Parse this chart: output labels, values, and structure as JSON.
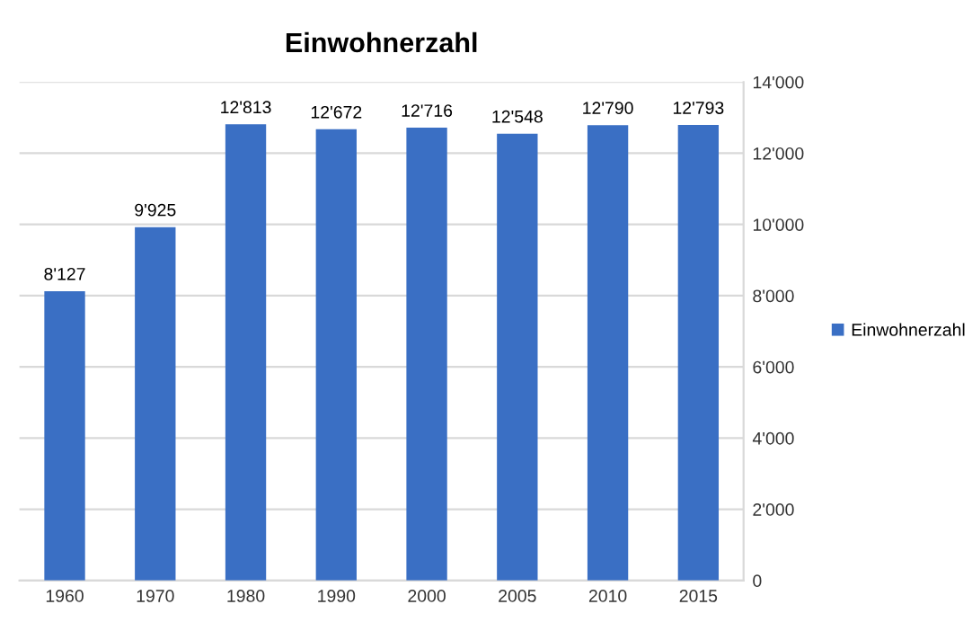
{
  "chart_data": {
    "type": "bar",
    "title": "Einwohnerzahl",
    "categories": [
      "1960",
      "1970",
      "1980",
      "1990",
      "2000",
      "2005",
      "2010",
      "2015"
    ],
    "series": [
      {
        "name": "Einwohnerzahl",
        "color": "#3a6fc4",
        "values": [
          8127,
          9925,
          12813,
          12672,
          12716,
          12548,
          12790,
          12793
        ],
        "value_labels": [
          "8'127",
          "9'925",
          "12'813",
          "12'672",
          "12'716",
          "12'548",
          "12'790",
          "12'793"
        ]
      }
    ],
    "ylim": [
      0,
      14000
    ],
    "yticks": [
      0,
      {
        "value": 2000,
        "label": "2'000"
      },
      {
        "value": 4000,
        "label": "4'000"
      },
      {
        "value": 6000,
        "label": "6'000"
      },
      {
        "value": 8000,
        "label": "8'000"
      },
      {
        "value": 10000,
        "label": "10'000"
      },
      {
        "value": 12000,
        "label": "12'000"
      },
      {
        "value": 14000,
        "label": "14'000"
      }
    ],
    "grid": "y",
    "legend": "right"
  }
}
